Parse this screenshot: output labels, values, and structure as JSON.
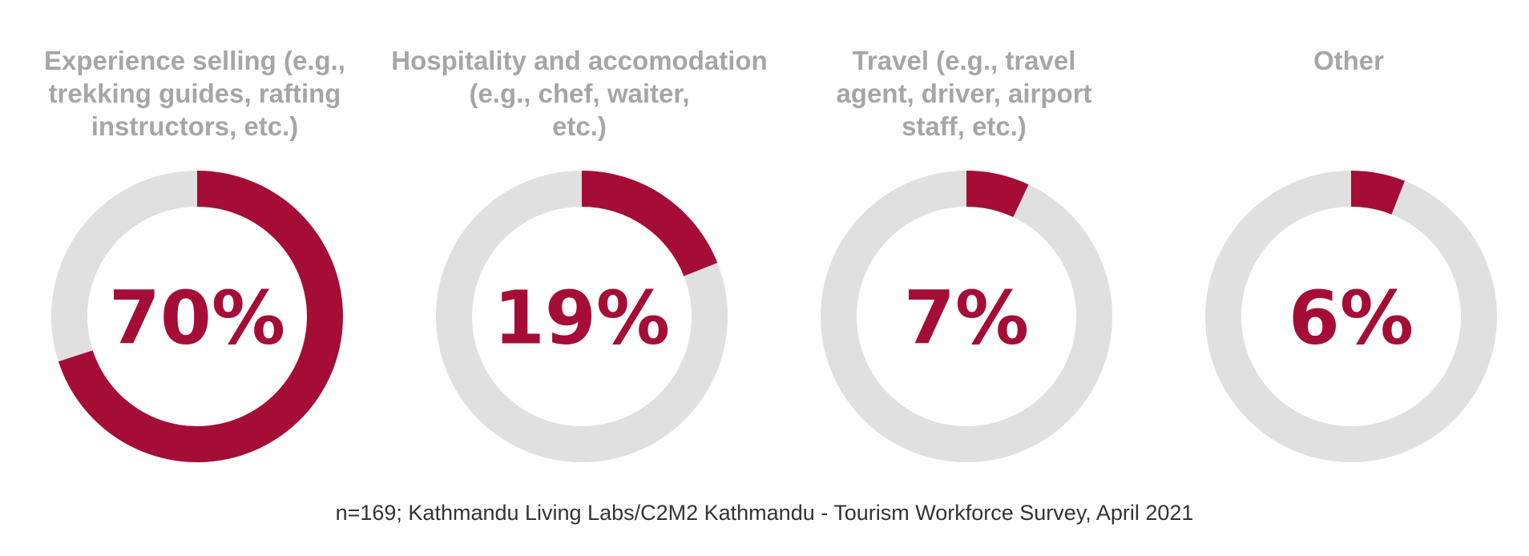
{
  "colors": {
    "accent": "#a50d36",
    "track": "#e0e0e0",
    "title": "#a6a6a6",
    "footnote": "#333333"
  },
  "chart_data": {
    "type": "pie",
    "subtype": "donut",
    "items": [
      {
        "label": "Experience selling (e.g.,\ntrekking guides, rafting\ninstructors, etc.)",
        "value": 70,
        "display": "70%"
      },
      {
        "label": "Hospitality and accomodation\n(e.g., chef, waiter,\netc.)",
        "value": 19,
        "display": "19%"
      },
      {
        "label": "Travel (e.g., travel\nagent, driver, airport\nstaff, etc.)",
        "value": 7,
        "display": "7%"
      },
      {
        "label": "Other",
        "value": 6,
        "display": "6%"
      }
    ]
  },
  "footnote": "n=169; Kathmandu Living Labs/C2M2 Kathmandu - Tourism Workforce Survey, April 2021"
}
